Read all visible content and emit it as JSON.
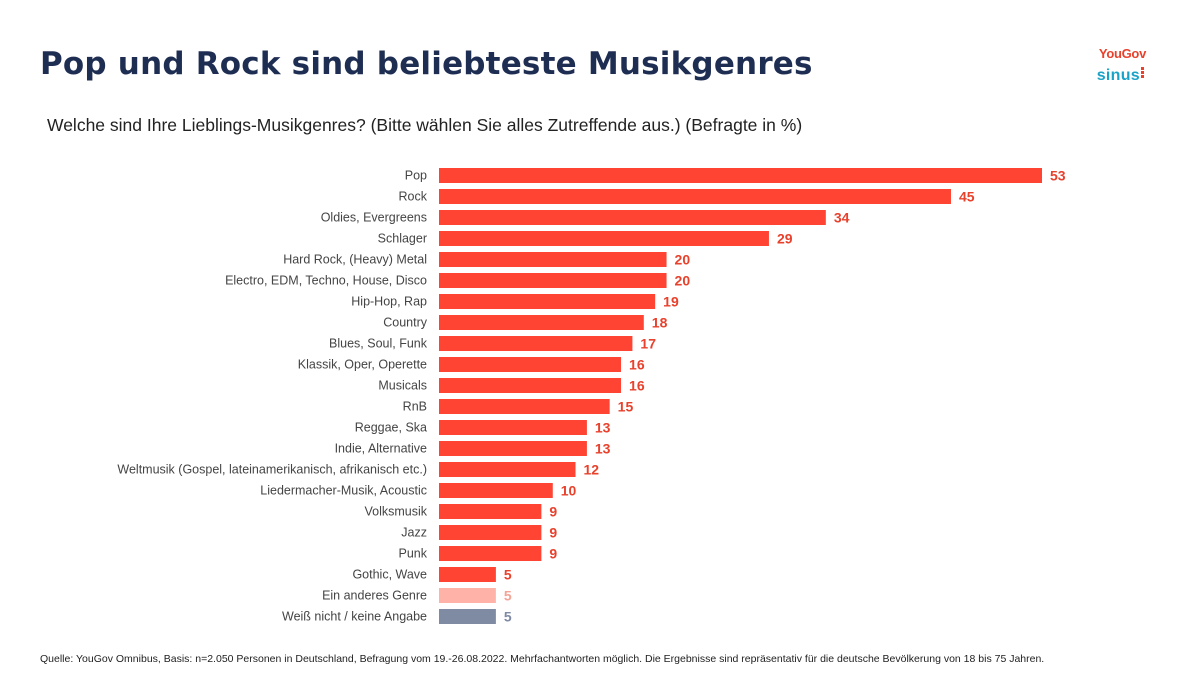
{
  "header": {
    "title": "Pop und Rock sind beliebteste Musikgenres",
    "subtitle": "Welche sind Ihre Lieblings-Musikgenres? (Bitte wählen Sie alles Zutreffende aus.) (Befragte in %)"
  },
  "logos": {
    "yougov": "YouGov",
    "sinus": "sinus"
  },
  "chart_data": {
    "type": "bar",
    "orientation": "horizontal",
    "title": "",
    "xlabel": "",
    "ylabel": "",
    "xlim": [
      0,
      53
    ],
    "grid": false,
    "legend": "none",
    "categories": [
      "Pop",
      "Rock",
      "Oldies, Evergreens",
      "Schlager",
      "Hard Rock, (Heavy) Metal",
      "Electro,  EDM, Techno, House, Disco",
      "Hip-Hop, Rap",
      "Country",
      "Blues, Soul, Funk",
      "Klassik, Oper, Operette",
      "Musicals",
      "RnB",
      "Reggae, Ska",
      "Indie, Alternative",
      "Weltmusik (Gospel, lateinamerikanisch, afrikanisch etc.)",
      "Liedermacher-Musik, Acoustic",
      "Volksmusik",
      "Jazz",
      "Punk",
      "Gothic, Wave",
      "Ein anderes Genre",
      "Weiß nicht / keine Angabe"
    ],
    "values": [
      53,
      45,
      34,
      29,
      20,
      20,
      19,
      18,
      17,
      16,
      16,
      15,
      13,
      13,
      12,
      10,
      9,
      9,
      9,
      5,
      5,
      5
    ],
    "colors": {
      "primary": "#ff4433",
      "other": "#ffb3a8",
      "unknown": "#7f8aa3",
      "value_label_primary": "#e8412c",
      "value_label_other": "#f4a497",
      "value_label_unknown": "#7f8aa3"
    },
    "bar_color_keys": [
      "primary",
      "primary",
      "primary",
      "primary",
      "primary",
      "primary",
      "primary",
      "primary",
      "primary",
      "primary",
      "primary",
      "primary",
      "primary",
      "primary",
      "primary",
      "primary",
      "primary",
      "primary",
      "primary",
      "primary",
      "other",
      "unknown"
    ]
  },
  "footer": {
    "source": "Quelle: YouGov Omnibus, Basis: n=2.050 Personen in Deutschland, Befragung vom 19.-26.08.2022. Mehrfachantworten möglich. Die Ergebnisse sind repräsentativ für die deutsche Bevölkerung von 18 bis 75 Jahren."
  }
}
